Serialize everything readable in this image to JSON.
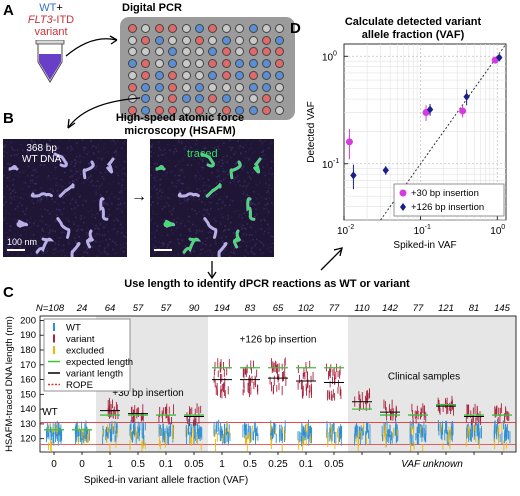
{
  "panel_A": {
    "letter": "A",
    "tube_line1_part1": "WT",
    "tube_line1_part2": "+",
    "tube_line2_part1": "FLT3",
    "tube_line2_part2": "-ITD",
    "tube_line3": "variant",
    "title": "Digital PCR",
    "colors": {
      "wt": "#5a8fd6",
      "variant": "#e06a6a",
      "empty": "#c9c9c9",
      "tube": "#6a3fc7"
    }
  },
  "panel_B": {
    "letter": "B",
    "title_line1": "High-speed atomic force",
    "title_line2": "microscopy (HSAFM)",
    "dna_label_line1": "368 bp",
    "dna_label_line2": "WT DNA",
    "scalebar": "100 nm",
    "traced_label": "traced",
    "arrow": "→"
  },
  "panel_D": {
    "letter": "D",
    "title_line1": "Calculate detected variant",
    "title_line2": "allele fraction (VAF)",
    "ylabel": "Detected VAF",
    "xlabel": "Spiked-in VAF",
    "legend": [
      "+30 bp insertion",
      "+126 bp insertion"
    ]
  },
  "middle_caption": "Use length to identify dPCR reactions as WT or variant",
  "panel_C": {
    "letter": "C",
    "ylabel": "HSAFM-traced DNA length (nm)",
    "xlabel": "Spiked-in variant allele fraction (VAF)",
    "vaf_unknown": "VAF unknown",
    "n_values": [
      "N=108",
      "24",
      "64",
      "57",
      "57",
      "90",
      "194",
      "83",
      "65",
      "102",
      "77",
      "110",
      "142",
      "77",
      "121",
      "81",
      "145"
    ],
    "x_ticks": [
      "0",
      "0",
      "1",
      "0.5",
      "0.1",
      "0.05",
      "1",
      "0.5",
      "0.25",
      "0.1",
      "0.05"
    ],
    "y_ticks": [
      "120",
      "130",
      "140",
      "150",
      "160",
      "170",
      "180",
      "190",
      "200"
    ],
    "group_labels": {
      "wt": "WT",
      "ins30": "+30 bp insertion",
      "ins126": "+126 bp insertion",
      "clinical": "Clinical samples"
    },
    "legend": [
      "WT",
      "variant",
      "excluded",
      "expected length",
      "variant length",
      "ROPE"
    ],
    "colors": {
      "wt": "#2f8fd0",
      "variant": "#a8213b",
      "excluded": "#f0b400",
      "expected": "#3ac13a",
      "varlen": "#000000",
      "rope": "#e03030",
      "shade": "#e6e6e6"
    }
  },
  "chart_data": {
    "type": "scatter",
    "title": "Calculate detected variant allele fraction (VAF)",
    "xlabel": "Spiked-in VAF",
    "ylabel": "Detected VAF",
    "xscale": "log",
    "yscale": "log",
    "xlim": [
      0.01,
      1.3
    ],
    "ylim": [
      0.03,
      1.3
    ],
    "grid": true,
    "legend_position": "bottom-right",
    "series": [
      {
        "name": "+30 bp insertion",
        "color": "#d63be0",
        "x": [
          0.0125,
          0.125,
          0.375,
          1.0
        ],
        "y": [
          0.16,
          0.3,
          0.31,
          0.92
        ],
        "err": [
          0.05,
          0.05,
          0.04,
          0.05
        ]
      },
      {
        "name": "+126 bp insertion",
        "color": "#1a1f8a",
        "x": [
          0.0125,
          0.033,
          0.125,
          0.375,
          1.0
        ],
        "y": [
          0.078,
          0.087,
          0.32,
          0.42,
          0.97
        ],
        "err": [
          0.02,
          0.008,
          0.04,
          0.07,
          0.03
        ]
      }
    ]
  }
}
